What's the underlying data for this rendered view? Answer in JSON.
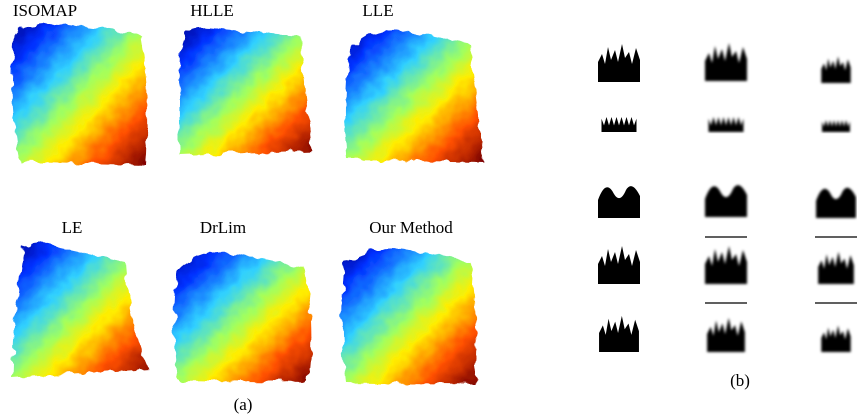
{
  "panel_a": {
    "titles": [
      "ISOMAP",
      "HLLE",
      "LLE",
      "LE",
      "DrLim",
      "Our Method"
    ],
    "caption": "(a)"
  },
  "panel_b": {
    "caption": "(b)"
  }
}
